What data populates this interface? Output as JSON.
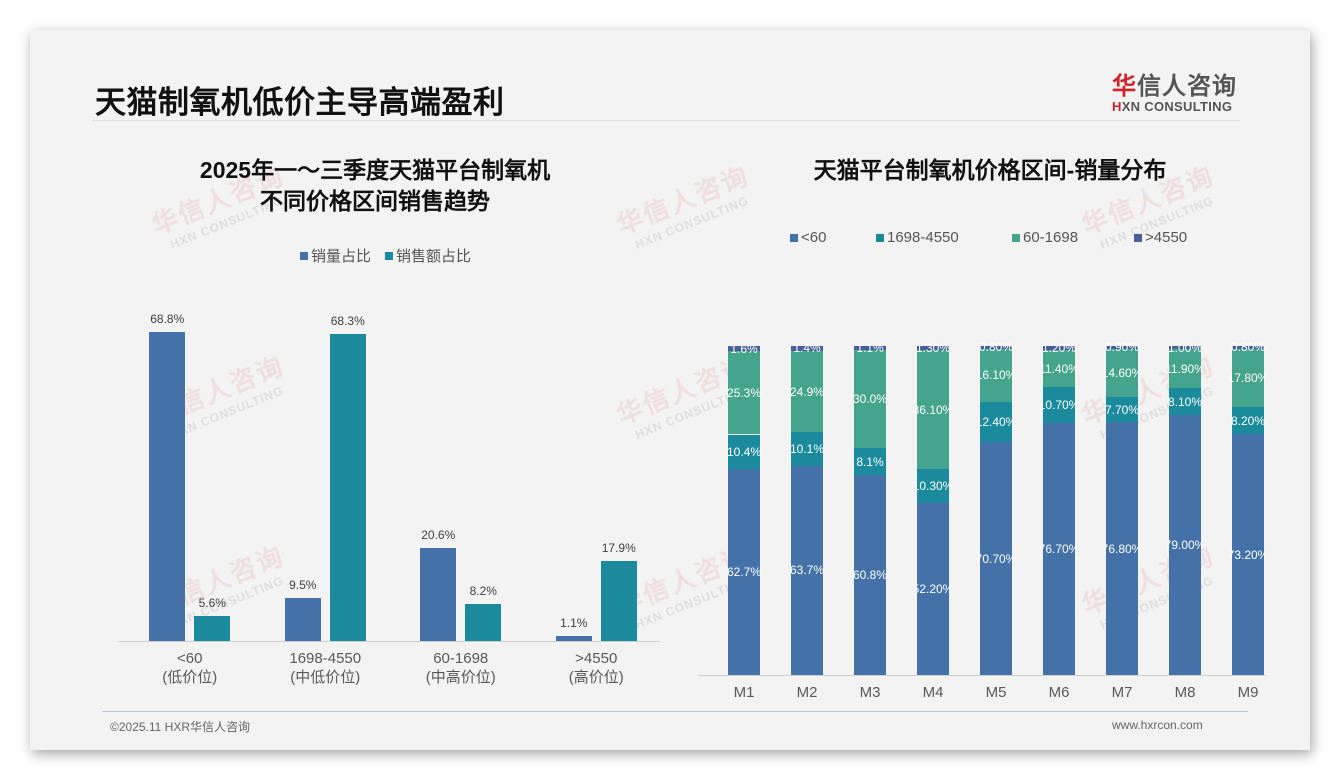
{
  "header": {
    "title": "天猫制氧机低价主导高端盈利",
    "logo_cn_red": "华",
    "logo_cn_rest": "信人咨询",
    "logo_en_red": "H",
    "logo_en_rest": "XN CONSULTING"
  },
  "watermark": {
    "cn": "华信人咨询",
    "en": "HXN CONSULTING"
  },
  "colors": {
    "volume": "#4472a8",
    "sales": "#1a8a9c",
    "lt60": "#4472a8",
    "r1698_4550": "#1a8a9c",
    "r60_1698": "#45a48c",
    "gt4550": "#4a5f9a"
  },
  "left_chart": {
    "title_line1": "2025年一～三季度天猫平台制氧机",
    "title_line2": "不同价格区间销售趋势",
    "legend": [
      "销量占比",
      "销售额占比"
    ]
  },
  "right_chart": {
    "title": "天猫平台制氧机价格区间-销量分布",
    "legend": [
      "<60",
      "1698-4550",
      "60-1698",
      ">4550"
    ]
  },
  "chart_data": [
    {
      "type": "bar",
      "title": "2025年一～三季度天猫平台制氧机不同价格区间销售趋势",
      "categories": [
        "<60",
        "1698-4550",
        "60-1698",
        ">4550"
      ],
      "category_sublabels": [
        "(低价位)",
        "(中低价位)",
        "(中高价位)",
        "(高价位)"
      ],
      "series": [
        {
          "name": "销量占比",
          "values": [
            68.8,
            9.5,
            20.6,
            1.1
          ],
          "labels": [
            "68.8%",
            "9.5%",
            "20.6%",
            "1.1%"
          ]
        },
        {
          "name": "销售额占比",
          "values": [
            5.6,
            68.3,
            8.2,
            17.9
          ],
          "labels": [
            "5.6%",
            "68.3%",
            "8.2%",
            "17.9%"
          ]
        }
      ],
      "xlabel": "",
      "ylabel": "",
      "ylim": [
        0,
        70
      ],
      "grid": false,
      "legend_position": "top"
    },
    {
      "type": "bar",
      "stacked": true,
      "title": "天猫平台制氧机价格区间-销量分布",
      "categories": [
        "M1",
        "M2",
        "M3",
        "M4",
        "M5",
        "M6",
        "M7",
        "M8",
        "M9"
      ],
      "series": [
        {
          "name": "<60",
          "values": [
            62.7,
            63.7,
            60.8,
            52.2,
            70.7,
            76.7,
            76.8,
            79.0,
            73.2
          ],
          "labels": [
            "62.7%",
            "63.7%",
            "60.8%",
            "52.20%",
            "70.70%",
            "76.70%",
            "76.80%",
            "79.00%",
            "73.20%"
          ]
        },
        {
          "name": "1698-4550",
          "values": [
            10.4,
            10.1,
            8.1,
            10.3,
            12.4,
            10.7,
            7.7,
            8.1,
            8.2
          ],
          "labels": [
            "10.4%",
            "10.1%",
            "8.1%",
            "10.30%",
            "12.40%",
            "10.70%",
            "7.70%",
            "8.10%",
            "8.20%"
          ]
        },
        {
          "name": "60-1698",
          "values": [
            25.3,
            24.9,
            30.0,
            36.1,
            16.1,
            11.4,
            14.6,
            11.9,
            17.8
          ],
          "labels": [
            "25.3%",
            "24.9%",
            "30.0%",
            "36.10%",
            "16.10%",
            "11.40%",
            "14.60%",
            "11.90%",
            "17.80%"
          ]
        },
        {
          "name": ">4550",
          "values": [
            1.6,
            1.4,
            1.1,
            1.3,
            0.8,
            1.2,
            0.9,
            1.0,
            0.8
          ],
          "labels": [
            "1.6%",
            "1.4%",
            "1.1%",
            "1.30%",
            "0.80%",
            "1.20%",
            "0.90%",
            "1.00%",
            "0.80%"
          ]
        }
      ],
      "xlabel": "",
      "ylabel": "",
      "ylim": [
        0,
        100
      ],
      "grid": false,
      "legend_position": "top"
    }
  ],
  "footer": {
    "copyright": "©2025.11 HXR华信人咨询",
    "website": "www.hxrcon.com"
  }
}
